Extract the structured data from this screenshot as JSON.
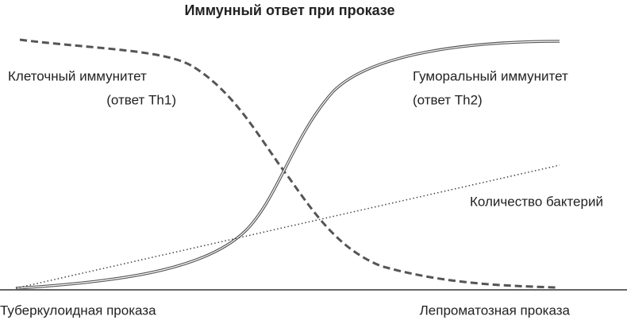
{
  "title": "Иммунный ответ при проказе",
  "curves": {
    "cellular": {
      "label": "Клеточный иммунитет",
      "sublabel": "(ответ Th1)"
    },
    "humoral": {
      "label": "Гуморальный иммунитет",
      "sublabel": "(ответ Th2)"
    },
    "bacteria": {
      "label": "Количество бактерий"
    }
  },
  "axis": {
    "left": "Туберкулоидная проказа",
    "right": "Лепроматозная проказа"
  }
}
